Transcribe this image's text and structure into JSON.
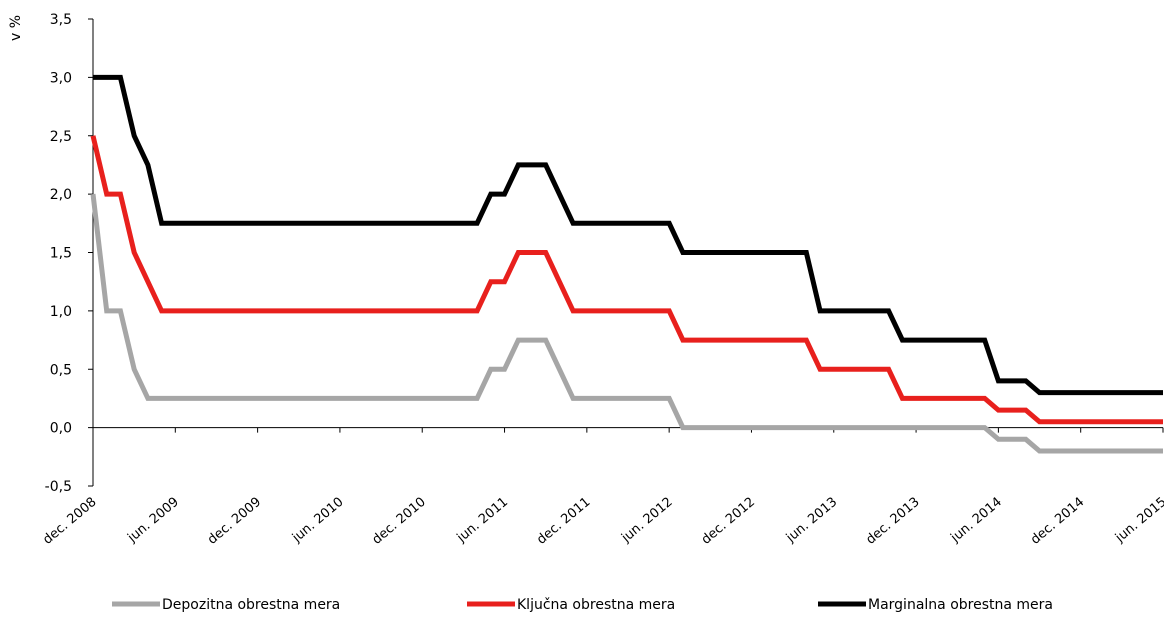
{
  "chart_data": {
    "type": "line",
    "title": "",
    "xlabel": "",
    "ylabel": "v %",
    "ylim": [
      -0.5,
      3.5
    ],
    "yticks": [
      "3,5",
      "3,0",
      "2,5",
      "2,0",
      "1,5",
      "1,0",
      "0,5",
      "0,0",
      "-0,5"
    ],
    "ytick_values": [
      3.5,
      3.0,
      2.5,
      2.0,
      1.5,
      1.0,
      0.5,
      0.0,
      -0.5
    ],
    "xlim": [
      "2008-12",
      "2015-06"
    ],
    "xticks": [
      "dec. 2008",
      "jun. 2009",
      "dec. 2009",
      "jun. 2010",
      "dec. 2010",
      "jun. 2011",
      "dec. 2011",
      "jun. 2012",
      "dec. 2012",
      "jun. 2013",
      "dec. 2013",
      "jun. 2014",
      "dec. 2014",
      "jun. 2015"
    ],
    "xtick_dates": [
      "2008-12",
      "2009-06",
      "2009-12",
      "2010-06",
      "2010-12",
      "2011-06",
      "2011-12",
      "2012-06",
      "2012-12",
      "2013-06",
      "2013-12",
      "2014-06",
      "2014-12",
      "2015-06"
    ],
    "grid": false,
    "legend_position": "bottom",
    "series": [
      {
        "name": "Depozitna obrestna mera",
        "color": "#a6a6a6",
        "points": [
          [
            "2008-12",
            2.0
          ],
          [
            "2009-01",
            1.0
          ],
          [
            "2009-02",
            1.0
          ],
          [
            "2009-03",
            0.5
          ],
          [
            "2009-04",
            0.25
          ],
          [
            "2011-04",
            0.25
          ],
          [
            "2011-05",
            0.5
          ],
          [
            "2011-06",
            0.5
          ],
          [
            "2011-07",
            0.75
          ],
          [
            "2011-09",
            0.75
          ],
          [
            "2011-11",
            0.25
          ],
          [
            "2012-06",
            0.25
          ],
          [
            "2012-07",
            0.0
          ],
          [
            "2014-05",
            0.0
          ],
          [
            "2014-06",
            -0.1
          ],
          [
            "2014-08",
            -0.1
          ],
          [
            "2014-09",
            -0.2
          ],
          [
            "2015-06",
            -0.2
          ]
        ]
      },
      {
        "name": "Ključna obrestna mera",
        "color": "#e8201d",
        "points": [
          [
            "2008-12",
            2.5
          ],
          [
            "2009-01",
            2.0
          ],
          [
            "2009-02",
            2.0
          ],
          [
            "2009-03",
            1.5
          ],
          [
            "2009-05",
            1.0
          ],
          [
            "2011-04",
            1.0
          ],
          [
            "2011-05",
            1.25
          ],
          [
            "2011-06",
            1.25
          ],
          [
            "2011-07",
            1.5
          ],
          [
            "2011-09",
            1.5
          ],
          [
            "2011-11",
            1.0
          ],
          [
            "2012-06",
            1.0
          ],
          [
            "2012-07",
            0.75
          ],
          [
            "2013-04",
            0.75
          ],
          [
            "2013-05",
            0.5
          ],
          [
            "2013-10",
            0.5
          ],
          [
            "2013-11",
            0.25
          ],
          [
            "2014-05",
            0.25
          ],
          [
            "2014-06",
            0.15
          ],
          [
            "2014-08",
            0.15
          ],
          [
            "2014-09",
            0.05
          ],
          [
            "2015-06",
            0.05
          ]
        ]
      },
      {
        "name": "Marginalna obrestna mera",
        "color": "#000000",
        "points": [
          [
            "2008-12",
            3.0
          ],
          [
            "2009-02",
            3.0
          ],
          [
            "2009-03",
            2.5
          ],
          [
            "2009-04",
            2.25
          ],
          [
            "2009-05",
            1.75
          ],
          [
            "2011-04",
            1.75
          ],
          [
            "2011-05",
            2.0
          ],
          [
            "2011-06",
            2.0
          ],
          [
            "2011-07",
            2.25
          ],
          [
            "2011-09",
            2.25
          ],
          [
            "2011-11",
            1.75
          ],
          [
            "2012-06",
            1.75
          ],
          [
            "2012-07",
            1.5
          ],
          [
            "2013-04",
            1.5
          ],
          [
            "2013-05",
            1.0
          ],
          [
            "2013-10",
            1.0
          ],
          [
            "2013-11",
            0.75
          ],
          [
            "2014-05",
            0.75
          ],
          [
            "2014-06",
            0.4
          ],
          [
            "2014-08",
            0.4
          ],
          [
            "2014-09",
            0.3
          ],
          [
            "2015-06",
            0.3
          ]
        ]
      }
    ]
  }
}
